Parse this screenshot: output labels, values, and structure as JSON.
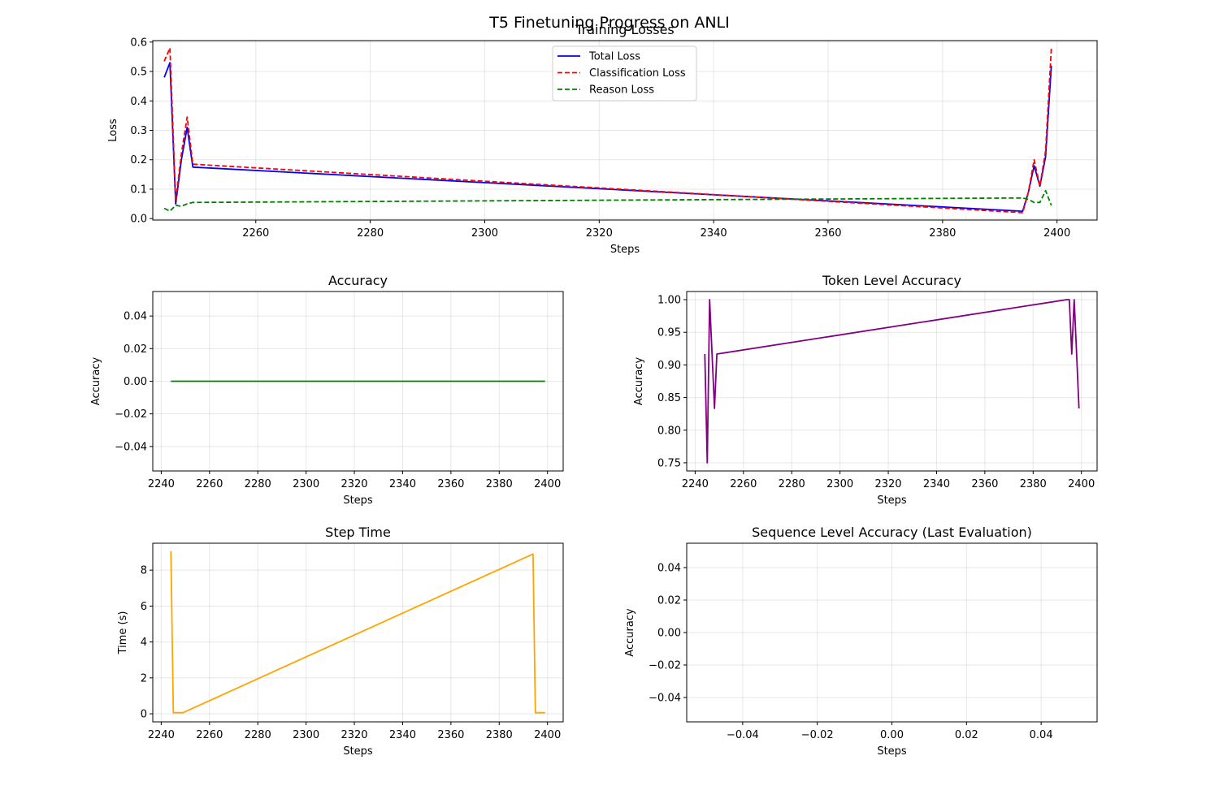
{
  "suptitle": "T5 Finetuning Progress on ANLI",
  "colors": {
    "total": "#0000ff",
    "classification": "#ff0000",
    "reason": "#008000",
    "accuracy": "#008000",
    "token_accuracy": "#800080",
    "step_time": "#ffa500",
    "grid": "#b0b0b0"
  },
  "chart_data": [
    {
      "id": "losses",
      "type": "line",
      "title": "Training Losses",
      "xlabel": "Steps",
      "ylabel": "Loss",
      "xlim": [
        2242,
        2407
      ],
      "ylim": [
        -0.005,
        0.605
      ],
      "xticks": [
        2240,
        2260,
        2280,
        2300,
        2320,
        2340,
        2360,
        2380,
        2400
      ],
      "yticks": [
        0.0,
        0.1,
        0.2,
        0.3,
        0.4,
        0.5,
        0.6
      ],
      "grid": true,
      "legend": "upper-center",
      "series": [
        {
          "name": "Total Loss",
          "color": "#0000ff",
          "dash": "solid",
          "x": [
            2244,
            2245,
            2246,
            2247,
            2248,
            2249,
            2394,
            2395,
            2396,
            2397,
            2398,
            2399
          ],
          "y": [
            0.48,
            0.53,
            0.05,
            0.2,
            0.31,
            0.175,
            0.025,
            0.09,
            0.18,
            0.11,
            0.21,
            0.52
          ]
        },
        {
          "name": "Classification Loss",
          "color": "#ff0000",
          "dash": "dashed",
          "x": [
            2244,
            2245,
            2246,
            2247,
            2248,
            2249,
            2394,
            2395,
            2396,
            2397,
            2398,
            2399
          ],
          "y": [
            0.535,
            0.58,
            0.06,
            0.22,
            0.345,
            0.185,
            0.02,
            0.09,
            0.2,
            0.11,
            0.23,
            0.58
          ]
        },
        {
          "name": "Reason Loss",
          "color": "#008000",
          "dash": "dashed",
          "x": [
            2244,
            2245,
            2246,
            2247,
            2248,
            2249,
            2394,
            2395,
            2396,
            2397,
            2398,
            2399
          ],
          "y": [
            0.035,
            0.025,
            0.045,
            0.042,
            0.05,
            0.055,
            0.07,
            0.065,
            0.055,
            0.055,
            0.095,
            0.045
          ]
        }
      ]
    },
    {
      "id": "accuracy",
      "type": "line",
      "title": "Accuracy",
      "xlabel": "Steps",
      "ylabel": "Accuracy",
      "xlim": [
        2236.5,
        2406.5
      ],
      "ylim": [
        -0.055,
        0.055
      ],
      "xticks": [
        2240,
        2260,
        2280,
        2300,
        2320,
        2340,
        2360,
        2380,
        2400
      ],
      "yticks": [
        -0.04,
        -0.02,
        0.0,
        0.02,
        0.04
      ],
      "grid": true,
      "series": [
        {
          "color": "#008000",
          "dash": "solid",
          "x": [
            2244,
            2399
          ],
          "y": [
            0.0,
            0.0
          ]
        }
      ]
    },
    {
      "id": "token-accuracy",
      "type": "line",
      "title": "Token Level Accuracy",
      "xlabel": "Steps",
      "ylabel": "Accuracy",
      "xlim": [
        2236.5,
        2406.5
      ],
      "ylim": [
        0.7375,
        1.0125
      ],
      "xticks": [
        2240,
        2260,
        2280,
        2300,
        2320,
        2340,
        2360,
        2380,
        2400
      ],
      "yticks": [
        0.75,
        0.8,
        0.85,
        0.9,
        0.95,
        1.0
      ],
      "grid": true,
      "series": [
        {
          "color": "#800080",
          "dash": "solid",
          "x": [
            2244,
            2245,
            2246,
            2247,
            2248,
            2249,
            2394,
            2395,
            2396,
            2397,
            2398,
            2399
          ],
          "y": [
            0.9167,
            0.75,
            1.0,
            0.9167,
            0.8333,
            0.9167,
            1.0,
            1.0,
            0.9167,
            1.0,
            0.9167,
            0.8333
          ]
        }
      ]
    },
    {
      "id": "step-time",
      "type": "line",
      "title": "Step Time",
      "xlabel": "Steps",
      "ylabel": "Time (s)",
      "xlim": [
        2236.5,
        2406.5
      ],
      "ylim": [
        -0.45,
        9.5
      ],
      "xticks": [
        2240,
        2260,
        2280,
        2300,
        2320,
        2340,
        2360,
        2380,
        2400
      ],
      "yticks": [
        0,
        2,
        4,
        6,
        8
      ],
      "grid": true,
      "series": [
        {
          "color": "#ffa500",
          "dash": "solid",
          "x": [
            2244,
            2245,
            2246,
            2247,
            2248,
            2249,
            2394,
            2395,
            2396,
            2397,
            2398,
            2399
          ],
          "y": [
            9.05,
            0.06,
            0.06,
            0.06,
            0.06,
            0.06,
            8.9,
            0.06,
            0.06,
            0.06,
            0.06,
            0.06
          ]
        }
      ]
    },
    {
      "id": "sequence-accuracy",
      "type": "line",
      "title": "Sequence Level Accuracy (Last Evaluation)",
      "xlabel": "Steps",
      "ylabel": "Accuracy",
      "xlim": [
        -0.055,
        0.055
      ],
      "ylim": [
        -0.055,
        0.055
      ],
      "xticks": [
        -0.04,
        -0.02,
        0.0,
        0.02,
        0.04
      ],
      "yticks": [
        -0.04,
        -0.02,
        0.0,
        0.02,
        0.04
      ],
      "grid": true,
      "series": []
    }
  ]
}
